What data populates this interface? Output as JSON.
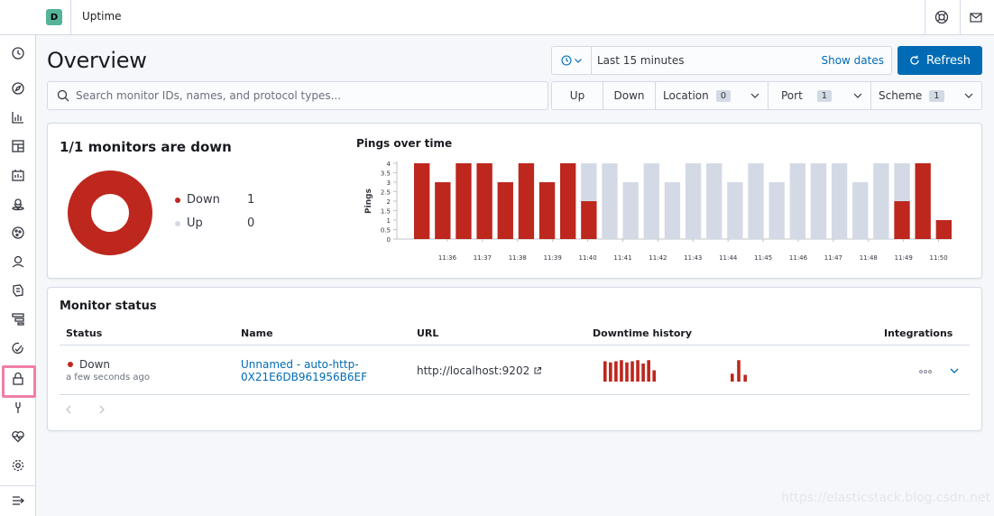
{
  "header": {
    "space_initial": "D",
    "app_title": "Uptime"
  },
  "page": {
    "title": "Overview"
  },
  "date_picker": {
    "range_text": "Last 15 minutes",
    "show_dates_label": "Show dates"
  },
  "refresh": {
    "label": "Refresh"
  },
  "search": {
    "placeholder": "Search monitor IDs, names, and protocol types..."
  },
  "filters": {
    "up_label": "Up",
    "down_label": "Down",
    "location": {
      "label": "Location",
      "count": "0"
    },
    "port": {
      "label": "Port",
      "count": "1"
    },
    "scheme": {
      "label": "Scheme",
      "count": "1"
    }
  },
  "snapshot": {
    "title": "1/1 monitors are down",
    "legend": [
      {
        "label": "Down",
        "value": "1",
        "color": "#bd271e"
      },
      {
        "label": "Up",
        "value": "0",
        "color": "#d3dae6"
      }
    ]
  },
  "pings": {
    "title": "Pings over time"
  },
  "chart_data": {
    "type": "bar",
    "title": "Pings over time",
    "ylabel": "Pings",
    "ylim": [
      0,
      4
    ],
    "y_ticks": [
      "0",
      "0.5",
      "1",
      "1.5",
      "2",
      "2.5",
      "3",
      "3.5",
      "4"
    ],
    "x_ticks": [
      "11:36",
      "11:37",
      "11:38",
      "11:39",
      "11:40",
      "11:41",
      "11:42",
      "11:43",
      "11:44",
      "11:45",
      "11:46",
      "11:47",
      "11:48",
      "11:49",
      "11:50"
    ],
    "stacked": true,
    "series": [
      {
        "name": "Down",
        "color": "#bd271e",
        "values": [
          4,
          3,
          4,
          4,
          3,
          4,
          3,
          4,
          2,
          0,
          0,
          0,
          0,
          0,
          0,
          0,
          0,
          0,
          0,
          0,
          0,
          0,
          0,
          2,
          4,
          1
        ]
      },
      {
        "name": "Up",
        "color": "#d3dae6",
        "values": [
          0,
          0,
          0,
          0,
          0,
          0,
          0,
          0,
          2,
          4,
          3,
          4,
          3,
          4,
          4,
          3,
          4,
          3,
          4,
          4,
          4,
          3,
          4,
          2,
          0,
          0
        ]
      }
    ]
  },
  "monitor_status": {
    "title": "Monitor status",
    "columns": [
      "Status",
      "Name",
      "URL",
      "Downtime history",
      "Integrations"
    ],
    "rows": [
      {
        "status": "Down",
        "status_time": "a few seconds ago",
        "name": "Unnamed - auto-http-0X21E6DB961956B6EF",
        "url": "http://localhost:9202",
        "downtime_history_a": [
          0.9,
          0.85,
          0.9,
          0.95,
          0.85,
          0.9,
          0.95,
          0.8,
          0.95,
          0.5
        ],
        "downtime_history_b": [
          0.35,
          0.95,
          0.3
        ]
      }
    ]
  },
  "watermark": "https://elasticstack.blog.csdn.net"
}
